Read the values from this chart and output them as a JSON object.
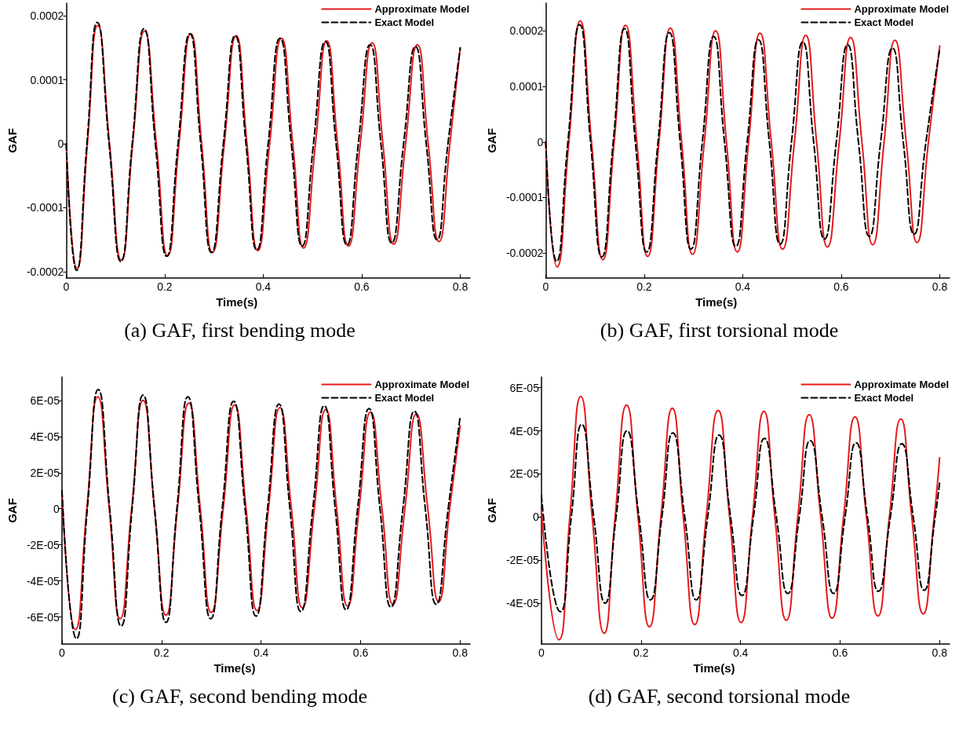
{
  "chart_data": [
    {
      "type": "line",
      "title": "(a) GAF, first bending mode",
      "xlabel": "Time(s)",
      "ylabel": "GAF",
      "legend": "top right",
      "grid": false,
      "marker": "none",
      "xlim": [
        0,
        0.82
      ],
      "xticks": [
        0,
        0.2,
        0.4,
        0.6,
        0.8
      ],
      "ylim": [
        -0.00021,
        0.00022
      ],
      "yticks": [
        -0.0002,
        -0.0001,
        0,
        0.0001,
        0.0002
      ],
      "series": [
        {
          "name": "Approximate Model",
          "color": "#e41a1c",
          "line_style": "solid",
          "x": [
            0,
            0.022,
            0.043,
            0.064,
            0.088,
            0.112,
            0.135,
            0.159,
            0.183,
            0.206,
            0.229,
            0.253,
            0.275,
            0.297,
            0.321,
            0.345,
            0.367,
            0.389,
            0.413,
            0.437,
            0.46,
            0.482,
            0.506,
            0.529,
            0.551,
            0.573,
            0.597,
            0.621,
            0.643,
            0.665,
            0.689,
            0.713,
            0.735,
            0.757,
            0.779,
            0.8
          ],
          "values": [
            0,
            -0.000195,
            0,
            0.000185,
            0,
            -0.000182,
            0,
            0.000176,
            0,
            -0.000175,
            0,
            0.000172,
            0,
            -0.00017,
            0,
            0.000169,
            0,
            -0.000167,
            0,
            0.000165,
            0,
            -0.000163,
            0,
            0.000161,
            0,
            -0.00016,
            0,
            0.000158,
            0,
            -0.000157,
            0,
            0.000155,
            0,
            -0.000153,
            0,
            0.00015
          ]
        },
        {
          "name": "Exact Model",
          "color": "#000000",
          "line_style": "dashed",
          "x": [
            0,
            0.021,
            0.042,
            0.063,
            0.087,
            0.111,
            0.134,
            0.158,
            0.181,
            0.204,
            0.227,
            0.251,
            0.273,
            0.295,
            0.319,
            0.343,
            0.365,
            0.387,
            0.41,
            0.434,
            0.457,
            0.479,
            0.502,
            0.526,
            0.548,
            0.57,
            0.593,
            0.617,
            0.639,
            0.661,
            0.685,
            0.709,
            0.731,
            0.753,
            0.775,
            0.8
          ],
          "values": [
            0,
            -0.000198,
            0,
            0.00019,
            0,
            -0.000184,
            0,
            0.00018,
            0,
            -0.000176,
            0,
            0.000172,
            0,
            -0.00017,
            0,
            0.000169,
            0,
            -0.000166,
            0,
            0.000165,
            0,
            -0.00016,
            0,
            0.00016,
            0,
            -0.000158,
            0,
            0.000155,
            0,
            -0.000155,
            0,
            0.000152,
            0,
            -0.00015,
            0,
            0.00015
          ]
        }
      ]
    },
    {
      "type": "line",
      "title": "(b) GAF, first torsional mode",
      "xlabel": "Time(s)",
      "ylabel": "GAF",
      "legend": "top right",
      "grid": false,
      "marker": "none",
      "xlim": [
        0,
        0.82
      ],
      "xticks": [
        0,
        0.2,
        0.4,
        0.6,
        0.8
      ],
      "ylim": [
        -0.000245,
        0.00025
      ],
      "yticks": [
        -0.0002,
        -0.0001,
        0,
        0.0001,
        0.0002
      ],
      "series": [
        {
          "name": "Approximate Model",
          "color": "#e41a1c",
          "line_style": "solid",
          "x": [
            0,
            0.023,
            0.047,
            0.07,
            0.093,
            0.116,
            0.139,
            0.162,
            0.185,
            0.207,
            0.23,
            0.253,
            0.276,
            0.298,
            0.322,
            0.345,
            0.367,
            0.389,
            0.412,
            0.435,
            0.458,
            0.481,
            0.505,
            0.528,
            0.55,
            0.572,
            0.596,
            0.619,
            0.642,
            0.664,
            0.687,
            0.709,
            0.732,
            0.754,
            0.777,
            0.8
          ],
          "values": [
            0,
            -0.000225,
            0,
            0.000218,
            0,
            -0.000212,
            0,
            0.00021,
            0,
            -0.000206,
            0,
            0.000205,
            0,
            -0.000202,
            0,
            0.0002,
            0,
            -0.000198,
            0,
            0.000196,
            0,
            -0.000193,
            0,
            0.000192,
            0,
            -0.000189,
            0,
            0.000188,
            0,
            -0.000185,
            0,
            0.000183,
            0,
            -0.000181,
            0,
            0.000173
          ]
        },
        {
          "name": "Exact Model",
          "color": "#000000",
          "line_style": "dashed",
          "x": [
            0,
            0.022,
            0.045,
            0.069,
            0.091,
            0.114,
            0.137,
            0.16,
            0.182,
            0.205,
            0.228,
            0.251,
            0.273,
            0.295,
            0.318,
            0.341,
            0.363,
            0.386,
            0.409,
            0.432,
            0.454,
            0.476,
            0.499,
            0.522,
            0.544,
            0.566,
            0.59,
            0.613,
            0.635,
            0.657,
            0.68,
            0.704,
            0.726,
            0.748,
            0.772,
            0.8
          ],
          "values": [
            0,
            -0.000215,
            0,
            0.000211,
            0,
            -0.000207,
            0,
            0.000204,
            0,
            -0.000198,
            0,
            0.000197,
            0,
            -0.000193,
            0,
            0.00019,
            0,
            -0.000188,
            0,
            0.000184,
            0,
            -0.000184,
            0,
            0.00018,
            0,
            -0.000175,
            0,
            0.000175,
            0,
            -0.00017,
            0,
            0.000169,
            0,
            -0.000166,
            0,
            0.000168
          ]
        }
      ]
    },
    {
      "type": "line",
      "title": "(c) GAF, second bending mode",
      "xlabel": "Time(s)",
      "ylabel": "GAF",
      "legend": "top right",
      "grid": false,
      "marker": "none",
      "xlim": [
        0,
        0.82
      ],
      "xticks": [
        0,
        0.2,
        0.4,
        0.6,
        0.8
      ],
      "ylim": [
        -7.5e-05,
        7.3e-05
      ],
      "yticks": [
        {
          "value": -6e-05,
          "label": "-6E-05"
        },
        {
          "value": -4e-05,
          "label": "-4E-05"
        },
        {
          "value": -2e-05,
          "label": "-2E-05"
        },
        0,
        {
          "value": 2e-05,
          "label": "2E-05"
        },
        {
          "value": 4e-05,
          "label": "4E-05"
        },
        {
          "value": 6e-05,
          "label": "6E-05"
        }
      ],
      "series": [
        {
          "name": "Approximate Model",
          "color": "#e41a1c",
          "line_style": "solid",
          "x": [
            0,
            0.027,
            0.05,
            0.072,
            0.095,
            0.117,
            0.14,
            0.163,
            0.186,
            0.209,
            0.232,
            0.255,
            0.278,
            0.3,
            0.324,
            0.347,
            0.37,
            0.392,
            0.415,
            0.438,
            0.461,
            0.483,
            0.507,
            0.53,
            0.552,
            0.574,
            0.597,
            0.62,
            0.643,
            0.665,
            0.689,
            0.712,
            0.735,
            0.757,
            0.779,
            0.8
          ],
          "values": [
            1e-05,
            -6.7e-05,
            0,
            6.2e-05,
            0,
            -6.1e-05,
            0,
            6e-05,
            0,
            -5.9e-05,
            0,
            5.85e-05,
            0,
            -5.75e-05,
            0,
            5.75e-05,
            0,
            -5.65e-05,
            0,
            5.6e-05,
            0,
            -5.5e-05,
            0,
            5.5e-05,
            0,
            -5.4e-05,
            0,
            5.35e-05,
            0,
            -5.3e-05,
            0,
            5.25e-05,
            0,
            -5.15e-05,
            0,
            4.6e-05
          ]
        },
        {
          "name": "Exact Model",
          "color": "#000000",
          "line_style": "dashed",
          "x": [
            0,
            0.029,
            0.051,
            0.073,
            0.096,
            0.119,
            0.141,
            0.163,
            0.186,
            0.209,
            0.231,
            0.253,
            0.276,
            0.299,
            0.322,
            0.345,
            0.368,
            0.39,
            0.413,
            0.436,
            0.458,
            0.48,
            0.504,
            0.527,
            0.549,
            0.571,
            0.594,
            0.617,
            0.639,
            0.661,
            0.685,
            0.708,
            0.73,
            0.752,
            0.776,
            0.8
          ],
          "values": [
            1e-05,
            -7.2e-05,
            0,
            6.6e-05,
            0,
            -6.5e-05,
            0,
            6.3e-05,
            0,
            -6.3e-05,
            0,
            6.2e-05,
            0,
            -6.1e-05,
            0,
            5.95e-05,
            0,
            -5.95e-05,
            0,
            5.8e-05,
            0,
            -5.7e-05,
            0,
            5.7e-05,
            0,
            -5.6e-05,
            0,
            5.55e-05,
            0,
            -5.45e-05,
            0,
            5.4e-05,
            0,
            -5.3e-05,
            0,
            5.1e-05
          ]
        }
      ]
    },
    {
      "type": "line",
      "title": "(d) GAF, second torsional mode",
      "xlabel": "Time(s)",
      "ylabel": "GAF",
      "legend": "top right",
      "grid": false,
      "marker": "none",
      "xlim": [
        0,
        0.82
      ],
      "xticks": [
        0,
        0.2,
        0.4,
        0.6,
        0.8
      ],
      "ylim": [
        -5.9e-05,
        6.5e-05
      ],
      "yticks": [
        {
          "value": -4e-05,
          "label": "-4E-05"
        },
        {
          "value": -2e-05,
          "label": "-2E-05"
        },
        0,
        {
          "value": 2e-05,
          "label": "2E-05"
        },
        {
          "value": 4e-05,
          "label": "4E-05"
        },
        {
          "value": 6e-05,
          "label": "6E-05"
        }
      ],
      "series": [
        {
          "name": "Approximate Model",
          "color": "#e41a1c",
          "line_style": "solid",
          "x": [
            0,
            0.035,
            0.057,
            0.079,
            0.102,
            0.126,
            0.148,
            0.171,
            0.194,
            0.217,
            0.24,
            0.263,
            0.285,
            0.308,
            0.331,
            0.355,
            0.378,
            0.401,
            0.424,
            0.447,
            0.469,
            0.492,
            0.515,
            0.538,
            0.561,
            0.584,
            0.607,
            0.63,
            0.653,
            0.676,
            0.699,
            0.722,
            0.744,
            0.767,
            0.789,
            0.8
          ],
          "values": [
            3e-06,
            -5.7e-05,
            0,
            5.6e-05,
            0,
            -5.4e-05,
            0,
            5.2e-05,
            0,
            -5.1e-05,
            0,
            5.05e-05,
            0,
            -5e-05,
            0,
            4.95e-05,
            0,
            -4.9e-05,
            0,
            4.9e-05,
            0,
            -4.8e-05,
            0,
            4.75e-05,
            0,
            -4.7e-05,
            0,
            4.65e-05,
            0,
            -4.6e-05,
            0,
            4.55e-05,
            0,
            -4.5e-05,
            0,
            2.75e-05
          ]
        },
        {
          "name": "Exact Model",
          "color": "#000000",
          "line_style": "dashed",
          "x": [
            0,
            0.038,
            0.06,
            0.081,
            0.105,
            0.128,
            0.15,
            0.172,
            0.196,
            0.219,
            0.242,
            0.264,
            0.288,
            0.311,
            0.334,
            0.357,
            0.38,
            0.403,
            0.426,
            0.448,
            0.472,
            0.495,
            0.518,
            0.54,
            0.564,
            0.587,
            0.61,
            0.632,
            0.655,
            0.677,
            0.701,
            0.724,
            0.747,
            0.769,
            0.791,
            0.8
          ],
          "values": [
            1e-05,
            -4.4e-05,
            0,
            4.3e-05,
            0,
            -4e-05,
            0,
            4e-05,
            0,
            -3.85e-05,
            0,
            3.9e-05,
            0,
            -3.85e-05,
            0,
            3.8e-05,
            0,
            -3.65e-05,
            0,
            3.65e-05,
            0,
            -3.55e-05,
            0,
            3.55e-05,
            0,
            -3.55e-05,
            0,
            3.45e-05,
            0,
            -3.45e-05,
            0,
            3.4e-05,
            0,
            -3.4e-05,
            0,
            1.6e-05
          ]
        }
      ]
    }
  ]
}
